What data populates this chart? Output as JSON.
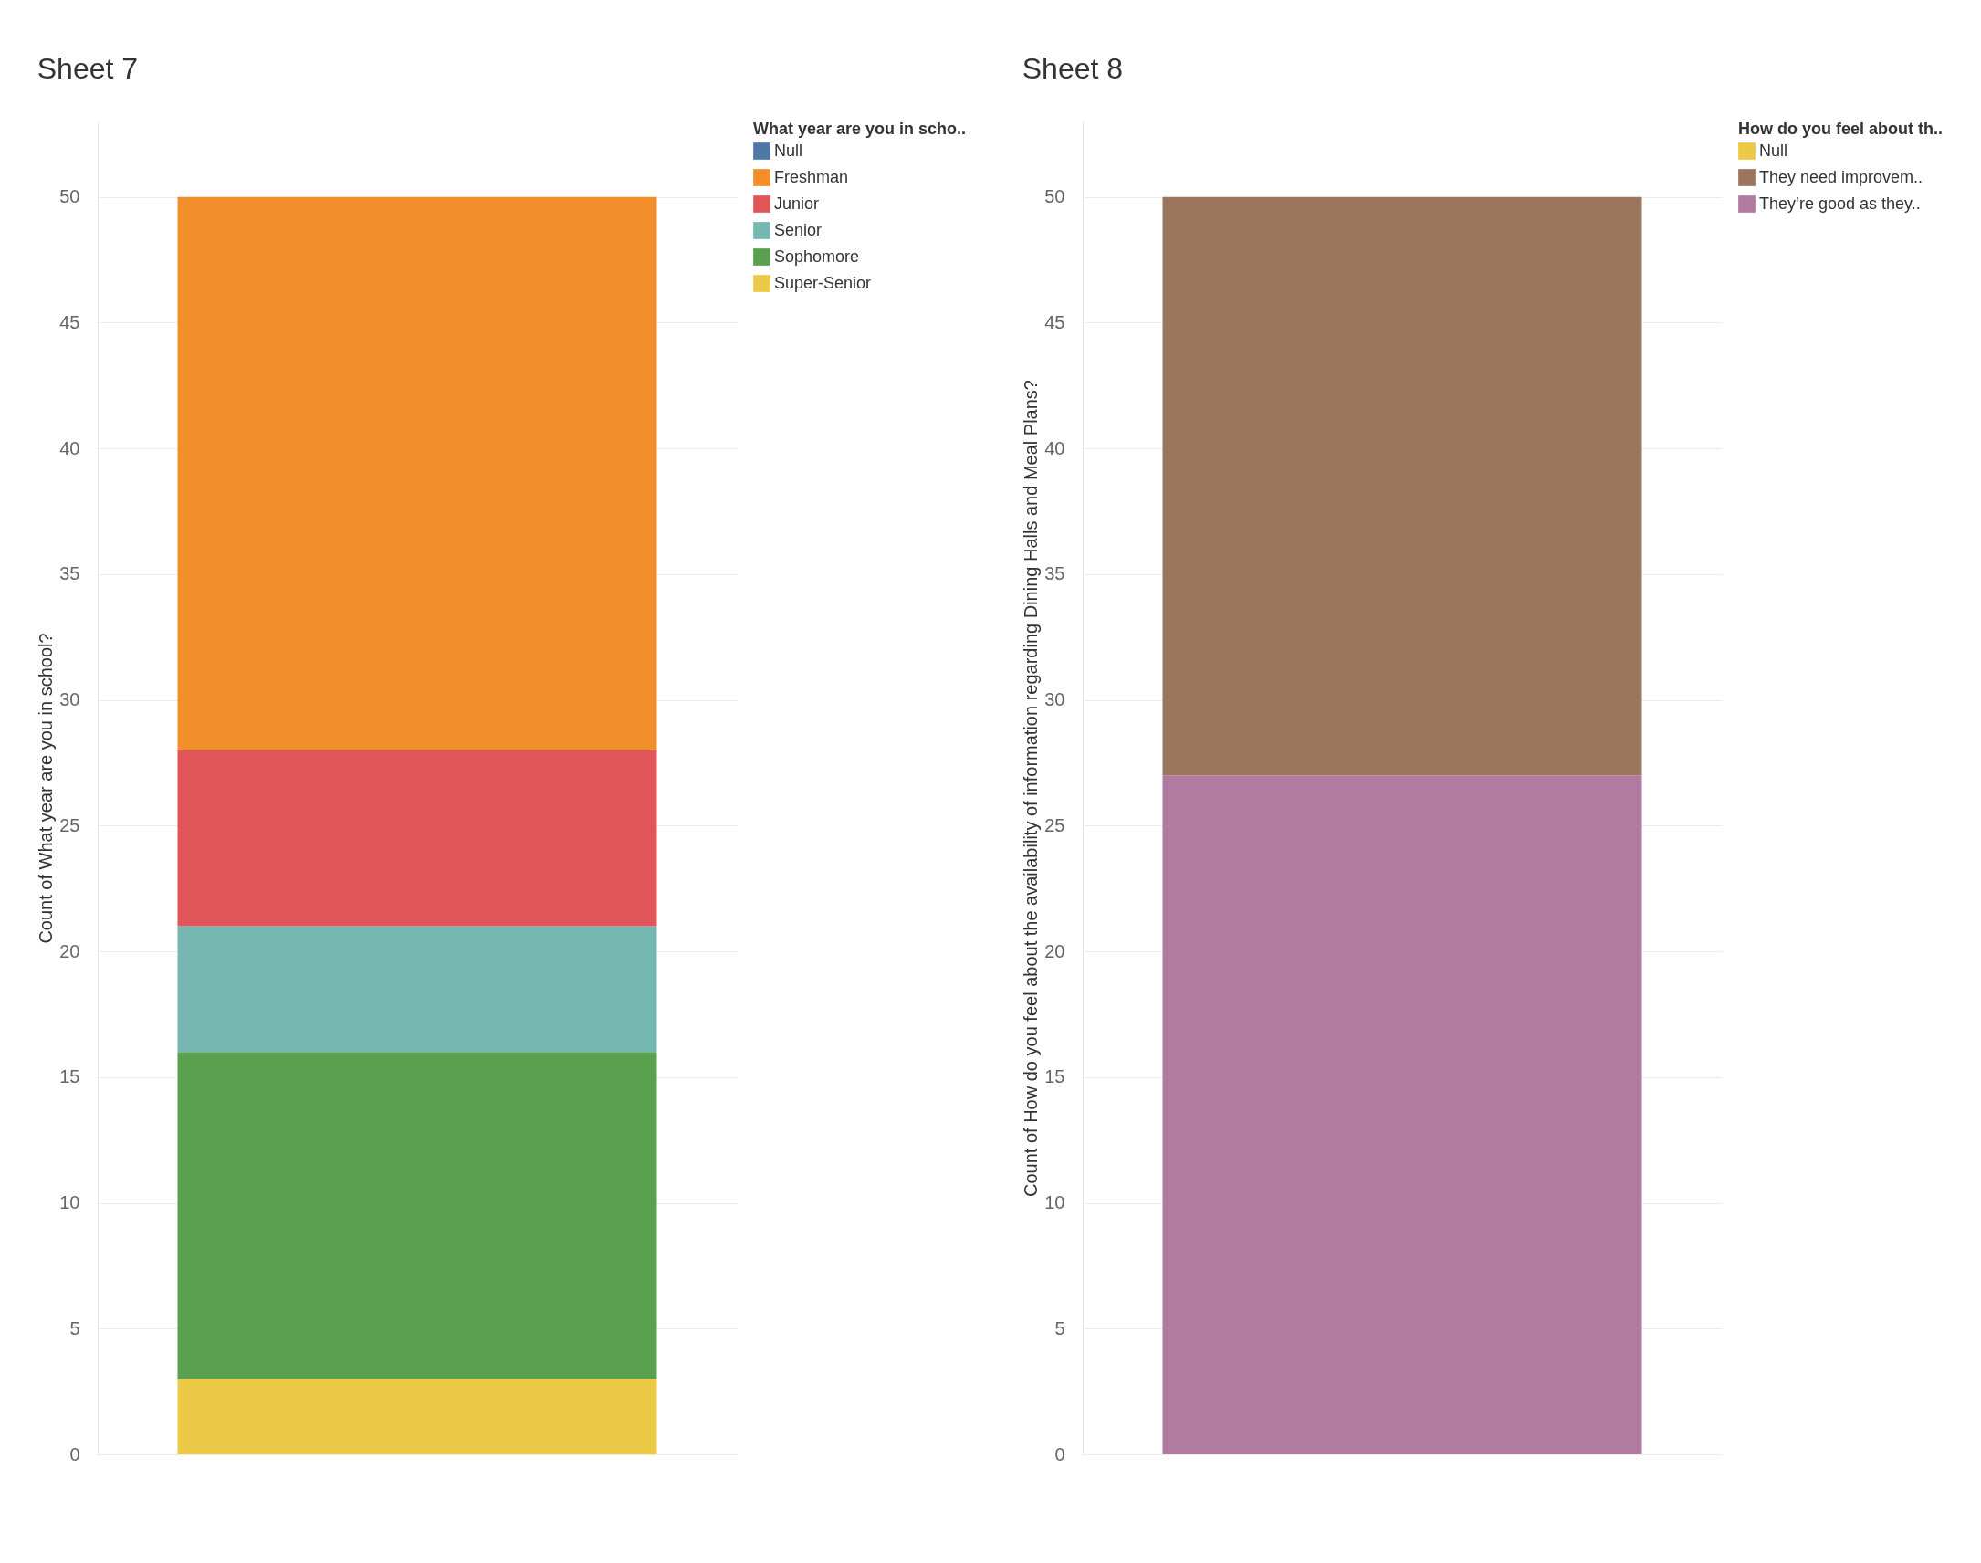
{
  "chart_data": [
    {
      "type": "bar",
      "title": "Sheet 7",
      "ylabel": "Count of What year are you in school?",
      "legend_title": "What year are you in scho..",
      "categories": [
        null
      ],
      "stacked": true,
      "ylim": [
        0,
        53
      ],
      "yticks": [
        0,
        5,
        10,
        15,
        20,
        25,
        30,
        35,
        40,
        45,
        50
      ],
      "grid": "y",
      "legend": "right",
      "tick_labels": "y",
      "series": [
        {
          "name": "Super-Senior",
          "color": "#edc948",
          "values": [
            3
          ]
        },
        {
          "name": "Sophomore",
          "color": "#59a14f",
          "values": [
            13
          ]
        },
        {
          "name": "Senior",
          "color": "#76b7b2",
          "values": [
            5
          ]
        },
        {
          "name": "Junior",
          "color": "#e15759",
          "values": [
            7
          ]
        },
        {
          "name": "Freshman",
          "color": "#f28e2b",
          "values": [
            22
          ]
        },
        {
          "name": "Null",
          "color": "#4e79a7",
          "values": [
            0
          ]
        }
      ]
    },
    {
      "type": "bar",
      "title": "Sheet 8",
      "ylabel": "Count of How do you feel about the availability of information regarding Dining Halls and Meal Plans?",
      "legend_title": "How do you feel about th..",
      "categories": [
        null
      ],
      "stacked": true,
      "ylim": [
        0,
        53
      ],
      "yticks": [
        0,
        5,
        10,
        15,
        20,
        25,
        30,
        35,
        40,
        45,
        50
      ],
      "grid": "y",
      "legend": "right",
      "tick_labels": "y",
      "series": [
        {
          "name": "They’re good as they..",
          "color": "#b07aa1",
          "values": [
            27
          ]
        },
        {
          "name": "They need improvem..",
          "color": "#9c755f",
          "values": [
            23
          ]
        },
        {
          "name": "Null",
          "color": "#edc948",
          "values": [
            0
          ]
        }
      ]
    }
  ]
}
